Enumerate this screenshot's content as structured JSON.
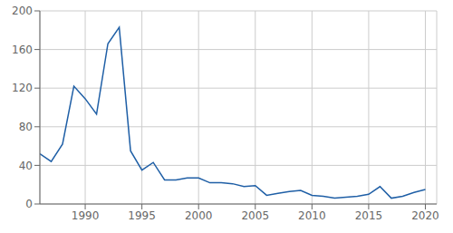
{
  "chart_data": {
    "type": "line",
    "x": [
      1986,
      1987,
      1988,
      1989,
      1990,
      1991,
      1992,
      1993,
      1994,
      1995,
      1996,
      1997,
      1998,
      1999,
      2000,
      2001,
      2002,
      2003,
      2004,
      2005,
      2006,
      2007,
      2008,
      2009,
      2010,
      2011,
      2012,
      2013,
      2014,
      2015,
      2016,
      2017,
      2018,
      2019,
      2020
    ],
    "values": [
      52,
      44,
      62,
      122,
      109,
      93,
      166,
      183,
      55,
      35,
      43,
      25,
      25,
      27,
      27,
      22,
      22,
      21,
      18,
      19,
      9,
      11,
      13,
      14,
      9,
      8,
      6,
      7,
      8,
      10,
      18,
      6,
      8,
      12,
      15
    ],
    "color": "#1f5fa6",
    "xlim": [
      1986,
      2021
    ],
    "xticks": [
      1990,
      1995,
      2000,
      2005,
      2010,
      2015,
      2020
    ],
    "ylim": [
      0,
      200
    ],
    "yticks": [
      0,
      40,
      80,
      120,
      160,
      200
    ],
    "grid": true
  }
}
